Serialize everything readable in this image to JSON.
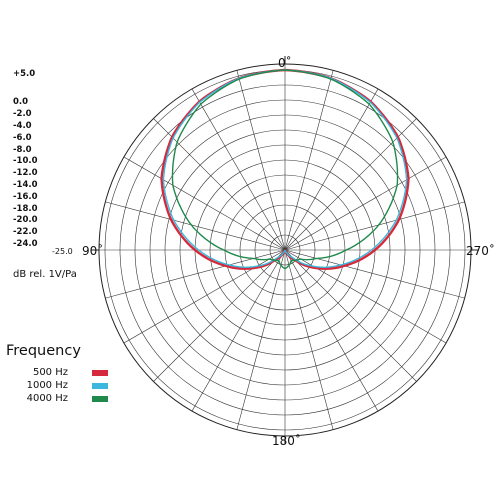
{
  "chart_data": {
    "type": "polar-line",
    "title": "",
    "radial_unit_label": "dB rel. 1V/Pa",
    "radial_ticks": [
      "+5.0",
      "0.0",
      "-2.0",
      "-4.0",
      "-6.0",
      "-8.0",
      "-10.0",
      "-12.0",
      "-14.0",
      "-16.0",
      "-18.0",
      "-20.0",
      "-22.0",
      "-24.0"
    ],
    "radial_min_label": "-25.0",
    "angle_labels": [
      {
        "angle": 0,
        "label": "0˚"
      },
      {
        "angle": 90,
        "label": "90˚"
      },
      {
        "angle": 180,
        "label": "180˚"
      },
      {
        "angle": 270,
        "label": "270˚"
      }
    ],
    "legend_title": "Frequency",
    "series": [
      {
        "name": "500 Hz",
        "color": "#d42a3c",
        "points": [
          [
            0,
            0
          ],
          [
            15,
            -0.3
          ],
          [
            30,
            -1.2
          ],
          [
            45,
            -2.8
          ],
          [
            60,
            -5.2
          ],
          [
            75,
            -8.6
          ],
          [
            90,
            -12.5
          ],
          [
            105,
            -16.5
          ],
          [
            120,
            -20
          ],
          [
            135,
            -23
          ],
          [
            150,
            -24.4
          ],
          [
            165,
            -24.9
          ],
          [
            180,
            -24.9
          ]
        ]
      },
      {
        "name": "1000 Hz",
        "color": "#3cb7dd",
        "points": [
          [
            0,
            0
          ],
          [
            15,
            -0.3
          ],
          [
            30,
            -1.3
          ],
          [
            45,
            -3.0
          ],
          [
            60,
            -5.5
          ],
          [
            75,
            -9.0
          ],
          [
            90,
            -13.0
          ],
          [
            105,
            -17.0
          ],
          [
            120,
            -20.5
          ],
          [
            135,
            -23.5
          ],
          [
            150,
            -24.5
          ],
          [
            165,
            -24.9
          ],
          [
            180,
            -24.9
          ]
        ]
      },
      {
        "name": "4000 Hz",
        "color": "#1f8a4c",
        "points": [
          [
            0,
            0
          ],
          [
            15,
            -0.4
          ],
          [
            30,
            -1.6
          ],
          [
            45,
            -3.8
          ],
          [
            60,
            -7.0
          ],
          [
            75,
            -11.5
          ],
          [
            90,
            -16.5
          ],
          [
            105,
            -20.5
          ],
          [
            120,
            -22.5
          ],
          [
            135,
            -23.0
          ],
          [
            150,
            -23.3
          ],
          [
            165,
            -22.8
          ],
          [
            180,
            -22.4
          ]
        ]
      }
    ]
  }
}
